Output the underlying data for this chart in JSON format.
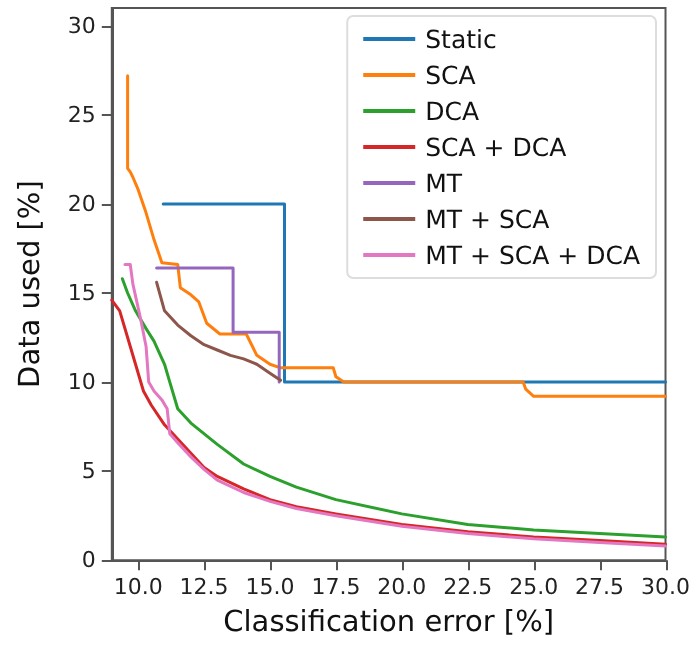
{
  "chart_data": {
    "type": "line",
    "xlabel": "Classification error [%]",
    "ylabel": "Data used [%]",
    "xlim": [
      9,
      30
    ],
    "ylim": [
      0,
      31
    ],
    "xticks": [
      {
        "value": 10,
        "label": "10.0"
      },
      {
        "value": 12.5,
        "label": "12.5"
      },
      {
        "value": 15,
        "label": "15.0"
      },
      {
        "value": 17.5,
        "label": "17.5"
      },
      {
        "value": 20,
        "label": "20.0"
      },
      {
        "value": 22.5,
        "label": "22.5"
      },
      {
        "value": 25,
        "label": "25.0"
      },
      {
        "value": 27.5,
        "label": "27.5"
      },
      {
        "value": 30,
        "label": "30.0"
      }
    ],
    "yticks": [
      0,
      5,
      10,
      15,
      20,
      25,
      30
    ],
    "grid": false,
    "legend": "top right",
    "marker": "none",
    "line_style": "solid",
    "series": [
      {
        "name": "Static",
        "color": "#1f77b4",
        "x": [
          10.95,
          15.55,
          15.55,
          30
        ],
        "values": [
          20,
          20,
          10,
          10
        ]
      },
      {
        "name": "SCA",
        "color": "#ff7f0e",
        "x": [
          9.6,
          9.6,
          9.7,
          9.8,
          10.0,
          10.3,
          10.6,
          10.9,
          11.5,
          11.6,
          12.0,
          12.3,
          12.6,
          13.1,
          14.1,
          14.5,
          15.0,
          15.4,
          17.4,
          17.5,
          17.8,
          24.6,
          24.7,
          25.0,
          30
        ],
        "values": [
          27.2,
          22.0,
          21.8,
          21.5,
          20.8,
          19.5,
          18.0,
          16.7,
          16.6,
          15.3,
          14.9,
          14.5,
          13.3,
          12.7,
          12.7,
          11.5,
          11.0,
          10.8,
          10.8,
          10.3,
          10.0,
          10.0,
          9.6,
          9.2,
          9.2
        ]
      },
      {
        "name": "DCA",
        "color": "#2ca02c",
        "x": [
          9.4,
          9.6,
          9.9,
          10.3,
          10.6,
          11.0,
          11.2,
          11.5,
          12.0,
          13.0,
          14.0,
          15.0,
          16.0,
          17.5,
          20.0,
          22.5,
          25.0,
          27.5,
          30.0
        ],
        "values": [
          15.8,
          15.0,
          14.0,
          13.0,
          12.3,
          11.0,
          10.0,
          8.5,
          7.7,
          6.5,
          5.4,
          4.7,
          4.1,
          3.4,
          2.6,
          2.0,
          1.7,
          1.5,
          1.3
        ]
      },
      {
        "name": "SCA + DCA",
        "color": "#d62728",
        "x": [
          9.0,
          9.3,
          9.6,
          9.9,
          10.2,
          10.5,
          11.0,
          11.5,
          12.0,
          12.5,
          13.0,
          14.0,
          15.0,
          16.0,
          17.5,
          20.0,
          22.5,
          25.0,
          27.5,
          30.0
        ],
        "values": [
          14.6,
          14.0,
          12.5,
          11.0,
          9.5,
          8.7,
          7.6,
          6.8,
          6.0,
          5.2,
          4.7,
          4.0,
          3.4,
          3.0,
          2.6,
          2.0,
          1.6,
          1.3,
          1.1,
          0.9
        ]
      },
      {
        "name": "MT",
        "color": "#9467bd",
        "x": [
          10.7,
          13.6,
          13.6,
          15.35,
          15.35
        ],
        "values": [
          16.4,
          16.4,
          12.8,
          12.8,
          10.0
        ]
      },
      {
        "name": "MT + SCA",
        "color": "#8c564b",
        "x": [
          10.7,
          11.0,
          11.5,
          12.0,
          12.5,
          13.0,
          13.5,
          14.0,
          14.5,
          15.0,
          15.4
        ],
        "values": [
          15.6,
          14.0,
          13.2,
          12.6,
          12.1,
          11.8,
          11.5,
          11.3,
          11.0,
          10.5,
          10.1
        ]
      },
      {
        "name": "MT + SCA + DCA",
        "color": "#e377c2",
        "x": [
          9.5,
          9.7,
          9.8,
          10.1,
          10.3,
          10.4,
          10.6,
          10.9,
          11.1,
          11.2,
          11.5,
          12.0,
          12.5,
          13.0,
          14.0,
          15.0,
          16.0,
          17.5,
          20.0,
          22.5,
          25.0,
          27.5,
          30.0
        ],
        "values": [
          16.6,
          16.6,
          15.5,
          13.5,
          12.0,
          10.0,
          9.5,
          9.0,
          8.5,
          7.1,
          6.6,
          5.8,
          5.1,
          4.5,
          3.8,
          3.3,
          2.9,
          2.5,
          1.9,
          1.5,
          1.2,
          1.0,
          0.8
        ]
      }
    ]
  }
}
